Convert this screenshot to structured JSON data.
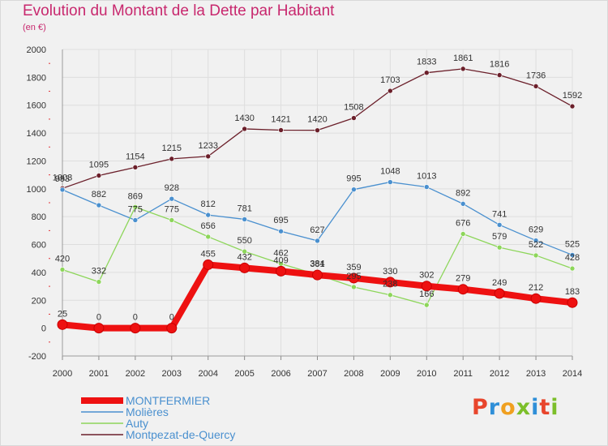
{
  "title": "Evolution du Montant de la Dette par Habitant",
  "unit_label": "(en €)",
  "logo_text": [
    "P",
    "r",
    "o",
    "x",
    "i",
    "t",
    "i"
  ],
  "logo_colors": [
    "#e8452c",
    "#2f8fd8",
    "#f0a020",
    "#7cbf2a",
    "#2f8fd8",
    "#e8452c",
    "#7cbf2a"
  ],
  "chart_data": {
    "type": "line",
    "x": [
      "2000",
      "2001",
      "2002",
      "2003",
      "2004",
      "2005",
      "2006",
      "2007",
      "2008",
      "2009",
      "2010",
      "2011",
      "2012",
      "2013",
      "2014"
    ],
    "ylim": [
      -200,
      2000
    ],
    "yticks": [
      -200,
      0,
      200,
      400,
      600,
      800,
      1000,
      1200,
      1400,
      1600,
      1800,
      2000
    ],
    "grid": true,
    "legend_position": "bottom-left",
    "series": [
      {
        "name": "Montpezat-de-Quercy",
        "color": "#6b1f2a",
        "labels": true,
        "values": [
          1003,
          1095,
          1154,
          1215,
          1233,
          1430,
          1421,
          1420,
          1508,
          1703,
          1833,
          1861,
          1816,
          1736,
          1592
        ]
      },
      {
        "name": "Molières",
        "color": "#4a90cf",
        "labels": true,
        "values": [
          993,
          882,
          775,
          928,
          812,
          781,
          695,
          627,
          995,
          1048,
          1013,
          892,
          741,
          629,
          525
        ]
      },
      {
        "name": "Auty",
        "color": "#8dd65a",
        "labels": true,
        "values": [
          420,
          332,
          869,
          775,
          656,
          550,
          462,
          384,
          295,
          238,
          166,
          676,
          579,
          522,
          428
        ]
      },
      {
        "name": "MONTFERMIER",
        "color": "#ee1111",
        "labels": true,
        "values": [
          25,
          0,
          0,
          0,
          455,
          432,
          409,
          381,
          359,
          330,
          302,
          279,
          249,
          212,
          183
        ]
      }
    ],
    "legend_order": [
      "MONTFERMIER",
      "Molières",
      "Auty",
      "Montpezat-de-Quercy"
    ]
  }
}
